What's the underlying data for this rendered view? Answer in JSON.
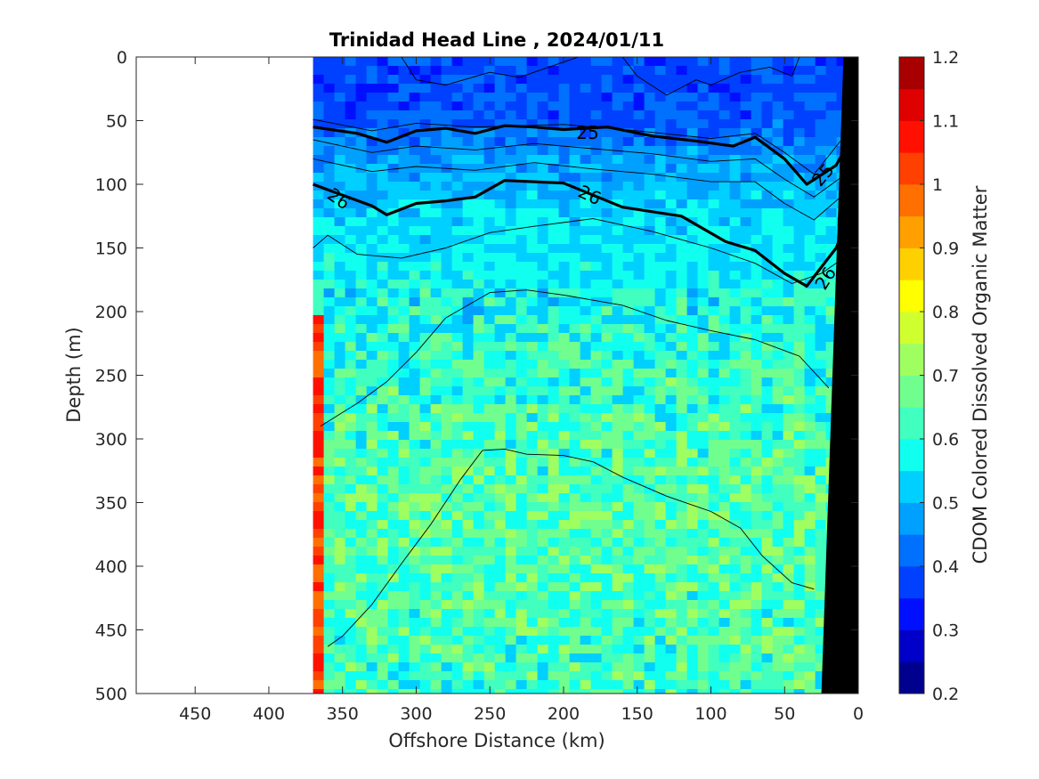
{
  "chart_data": {
    "type": "heatmap",
    "title": "Trinidad Head Line , 2024/01/11",
    "xlabel": "Offshore Distance (km)",
    "ylabel": "Depth (m)",
    "xlim": [
      490,
      0
    ],
    "ylim": [
      0,
      500
    ],
    "x_reversed": true,
    "y_reversed": true,
    "x_ticks": [
      "450",
      "400",
      "350",
      "300",
      "250",
      "200",
      "150",
      "100",
      "50",
      "0"
    ],
    "y_ticks": [
      "0",
      "50",
      "100",
      "150",
      "200",
      "250",
      "300",
      "350",
      "400",
      "450",
      "500"
    ],
    "colorbar": {
      "label": "CDOM Colored Dissolved Organic Matter",
      "range": [
        0.2,
        1.2
      ],
      "ticks": [
        "0.2",
        "0.3",
        "0.4",
        "0.5",
        "0.6",
        "0.7",
        "0.8",
        "0.9",
        "1",
        "1.1",
        "1.2"
      ],
      "levels": 20,
      "colors": [
        "#00008f",
        "#0000c8",
        "#0010ff",
        "#0040ff",
        "#0070ff",
        "#00a0ff",
        "#00d0ff",
        "#10ffef",
        "#40ffbf",
        "#70ff8f",
        "#a0ff60",
        "#d0ff30",
        "#ffff00",
        "#ffd000",
        "#ffa000",
        "#ff7000",
        "#ff4000",
        "#ff1000",
        "#df0000",
        "#a80000"
      ]
    },
    "data_extent_x": [
      370,
      0
    ],
    "profile_field": {
      "depths": [
        0,
        25,
        50,
        75,
        100,
        125,
        150,
        200,
        250,
        300,
        350,
        400,
        450,
        500
      ],
      "cdom": [
        0.38,
        0.38,
        0.4,
        0.46,
        0.5,
        0.54,
        0.55,
        0.58,
        0.61,
        0.63,
        0.64,
        0.64,
        0.63,
        0.62
      ]
    },
    "density_contours": [
      {
        "label": "25",
        "bold": true,
        "points": [
          [
            370,
            55
          ],
          [
            340,
            60
          ],
          [
            320,
            67
          ],
          [
            300,
            58
          ],
          [
            280,
            56
          ],
          [
            260,
            60
          ],
          [
            240,
            54
          ],
          [
            220,
            55
          ],
          [
            200,
            57
          ],
          [
            170,
            55
          ],
          [
            140,
            62
          ],
          [
            110,
            66
          ],
          [
            85,
            70
          ],
          [
            70,
            63
          ],
          [
            50,
            80
          ],
          [
            35,
            100
          ],
          [
            15,
            85
          ],
          [
            8,
            70
          ]
        ]
      },
      {
        "label": "26",
        "bold": true,
        "points": [
          [
            370,
            100
          ],
          [
            330,
            117
          ],
          [
            320,
            124
          ],
          [
            300,
            115
          ],
          [
            280,
            113
          ],
          [
            260,
            110
          ],
          [
            240,
            97
          ],
          [
            200,
            99
          ],
          [
            160,
            118
          ],
          [
            120,
            125
          ],
          [
            90,
            145
          ],
          [
            70,
            152
          ],
          [
            50,
            170
          ],
          [
            35,
            180
          ],
          [
            15,
            150
          ],
          [
            8,
            130
          ]
        ]
      },
      {
        "label": "",
        "bold": false,
        "points": [
          [
            370,
            49
          ],
          [
            330,
            58
          ],
          [
            300,
            52
          ],
          [
            260,
            55
          ],
          [
            200,
            53
          ],
          [
            150,
            58
          ],
          [
            100,
            64
          ],
          [
            70,
            60
          ],
          [
            50,
            75
          ],
          [
            30,
            92
          ],
          [
            12,
            66
          ]
        ]
      },
      {
        "label": "",
        "bold": false,
        "points": [
          [
            370,
            65
          ],
          [
            330,
            75
          ],
          [
            300,
            70
          ],
          [
            260,
            73
          ],
          [
            220,
            68
          ],
          [
            180,
            72
          ],
          [
            140,
            76
          ],
          [
            100,
            82
          ],
          [
            70,
            80
          ],
          [
            50,
            96
          ],
          [
            30,
            110
          ],
          [
            12,
            95
          ]
        ]
      },
      {
        "label": "",
        "bold": false,
        "points": [
          [
            370,
            80
          ],
          [
            330,
            90
          ],
          [
            300,
            86
          ],
          [
            260,
            89
          ],
          [
            220,
            83
          ],
          [
            180,
            88
          ],
          [
            140,
            92
          ],
          [
            100,
            98
          ],
          [
            70,
            98
          ],
          [
            50,
            115
          ],
          [
            30,
            128
          ],
          [
            12,
            110
          ]
        ]
      },
      {
        "label": "",
        "bold": false,
        "points": [
          [
            370,
            150
          ],
          [
            360,
            140
          ],
          [
            340,
            155
          ],
          [
            310,
            158
          ],
          [
            280,
            150
          ],
          [
            250,
            138
          ],
          [
            220,
            133
          ],
          [
            180,
            127
          ],
          [
            140,
            137
          ],
          [
            100,
            150
          ],
          [
            70,
            162
          ],
          [
            45,
            178
          ],
          [
            25,
            170
          ],
          [
            10,
            158
          ]
        ]
      },
      {
        "label": "",
        "bold": false,
        "points": [
          [
            365,
            290
          ],
          [
            340,
            272
          ],
          [
            320,
            255
          ],
          [
            300,
            232
          ],
          [
            280,
            205
          ],
          [
            250,
            185
          ],
          [
            225,
            183
          ],
          [
            200,
            187
          ],
          [
            160,
            195
          ],
          [
            130,
            207
          ],
          [
            100,
            215
          ],
          [
            70,
            222
          ],
          [
            40,
            235
          ],
          [
            20,
            260
          ]
        ]
      },
      {
        "label": "",
        "bold": false,
        "points": [
          [
            360,
            463
          ],
          [
            350,
            455
          ],
          [
            330,
            430
          ],
          [
            310,
            398
          ],
          [
            290,
            367
          ],
          [
            270,
            332
          ],
          [
            255,
            309
          ],
          [
            240,
            308
          ],
          [
            225,
            312
          ],
          [
            200,
            313
          ],
          [
            180,
            318
          ],
          [
            160,
            330
          ],
          [
            130,
            345
          ],
          [
            100,
            357
          ],
          [
            80,
            370
          ],
          [
            65,
            392
          ],
          [
            45,
            413
          ],
          [
            30,
            418
          ]
        ]
      },
      {
        "label": "",
        "bold": false,
        "points": [
          [
            310,
            0
          ],
          [
            300,
            18
          ],
          [
            280,
            22
          ],
          [
            250,
            12
          ],
          [
            230,
            16
          ],
          [
            210,
            8
          ],
          [
            190,
            0
          ]
        ]
      },
      {
        "label": "",
        "bold": false,
        "points": [
          [
            160,
            0
          ],
          [
            150,
            15
          ],
          [
            130,
            30
          ],
          [
            110,
            18
          ],
          [
            100,
            22
          ],
          [
            80,
            12
          ],
          [
            60,
            8
          ],
          [
            45,
            15
          ],
          [
            40,
            0
          ]
        ]
      }
    ],
    "bottom_topography": [
      [
        10,
        0
      ],
      [
        0,
        0
      ],
      [
        0,
        500
      ],
      [
        25,
        500
      ]
    ]
  }
}
